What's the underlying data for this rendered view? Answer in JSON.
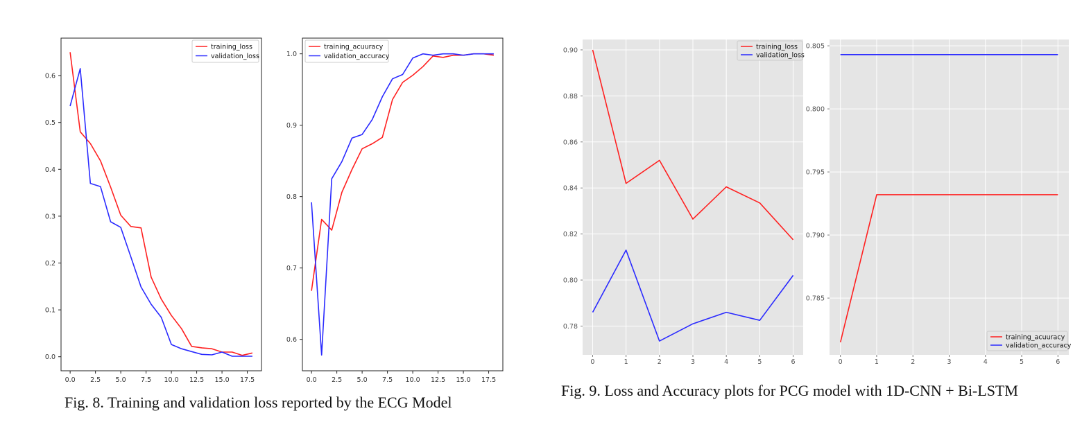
{
  "colors": {
    "training": "#ff2020",
    "validation": "#2a2aff",
    "gg_background": "#e5e5e5",
    "gg_grid": "#ffffff"
  },
  "captions": {
    "fig8": "Fig. 8. Training and validation loss reported by the ECG Model",
    "fig9": "Fig. 9. Loss and Accuracy plots for PCG model with 1D-CNN + Bi-LSTM"
  },
  "chart_data": [
    {
      "type": "line",
      "style": "classic",
      "legend": "top-right",
      "grid": false,
      "xlim": [
        -0.9,
        18.9
      ],
      "ylim": [
        -0.03,
        0.68
      ],
      "xticks": [
        0,
        2.5,
        5,
        7.5,
        10,
        12.5,
        15,
        17.5
      ],
      "xtick_labels": [
        "0.0",
        "2.5",
        "5.0",
        "7.5",
        "10.0",
        "12.5",
        "15.0",
        "17.5"
      ],
      "yticks": [
        0,
        0.1,
        0.2,
        0.3,
        0.4,
        0.5,
        0.6
      ],
      "ytick_labels": [
        "0.0",
        "0.1",
        "0.2",
        "0.3",
        "0.4",
        "0.5",
        "0.6"
      ],
      "x": [
        0,
        1,
        2,
        3,
        4,
        5,
        6,
        7,
        8,
        9,
        10,
        11,
        12,
        13,
        14,
        15,
        16,
        17,
        18
      ],
      "series": [
        {
          "name": "training_loss",
          "color": "#ff2020",
          "values": [
            0.65,
            0.48,
            0.455,
            0.418,
            0.362,
            0.302,
            0.278,
            0.275,
            0.17,
            0.123,
            0.088,
            0.06,
            0.022,
            0.019,
            0.017,
            0.01,
            0.01,
            0.003,
            0.008
          ]
        },
        {
          "name": "validation_loss",
          "color": "#2a2aff",
          "values": [
            0.535,
            0.615,
            0.37,
            0.363,
            0.288,
            0.276,
            0.213,
            0.149,
            0.112,
            0.084,
            0.026,
            0.017,
            0.011,
            0.005,
            0.004,
            0.01,
            0.001,
            0.001,
            0.001
          ]
        }
      ]
    },
    {
      "type": "line",
      "style": "classic",
      "legend": "top-left",
      "grid": false,
      "xlim": [
        -0.9,
        18.9
      ],
      "ylim": [
        0.556,
        1.022
      ],
      "xticks": [
        0,
        2.5,
        5,
        7.5,
        10,
        12.5,
        15,
        17.5
      ],
      "xtick_labels": [
        "0.0",
        "2.5",
        "5.0",
        "7.5",
        "10.0",
        "12.5",
        "15.0",
        "17.5"
      ],
      "yticks": [
        0.6,
        0.7,
        0.8,
        0.9,
        1.0
      ],
      "ytick_labels": [
        "0.6",
        "0.7",
        "0.8",
        "0.9",
        "1.0"
      ],
      "x": [
        0,
        1,
        2,
        3,
        4,
        5,
        6,
        7,
        8,
        9,
        10,
        11,
        12,
        13,
        14,
        15,
        16,
        17,
        18
      ],
      "series": [
        {
          "name": "training_acuuracy",
          "color": "#ff2020",
          "values": [
            0.668,
            0.768,
            0.753,
            0.806,
            0.838,
            0.867,
            0.874,
            0.883,
            0.936,
            0.96,
            0.97,
            0.982,
            0.997,
            0.995,
            0.998,
            0.998,
            1.0,
            1.0,
            0.998
          ]
        },
        {
          "name": "validation_accuracy",
          "color": "#2a2aff",
          "values": [
            0.792,
            0.578,
            0.825,
            0.849,
            0.882,
            0.887,
            0.908,
            0.94,
            0.965,
            0.971,
            0.994,
            1.0,
            0.998,
            1.0,
            1.0,
            0.998,
            1.0,
            1.0,
            1.0
          ]
        }
      ]
    },
    {
      "type": "line",
      "style": "ggplot",
      "legend": "top-right",
      "grid": true,
      "xlim": [
        -0.3,
        6.3
      ],
      "ylim": [
        0.7675,
        0.9045
      ],
      "xticks": [
        0,
        1,
        2,
        3,
        4,
        5,
        6
      ],
      "xtick_labels": [
        "0",
        "1",
        "2",
        "3",
        "4",
        "5",
        "6"
      ],
      "yticks": [
        0.78,
        0.8,
        0.82,
        0.84,
        0.86,
        0.88,
        0.9
      ],
      "ytick_labels": [
        "0.78",
        "0.80",
        "0.82",
        "0.84",
        "0.86",
        "0.88",
        "0.90"
      ],
      "x": [
        0,
        1,
        2,
        3,
        4,
        5,
        6
      ],
      "series": [
        {
          "name": "training_loss",
          "color": "#ff2020",
          "values": [
            0.9,
            0.842,
            0.852,
            0.8265,
            0.8405,
            0.8335,
            0.8175
          ]
        },
        {
          "name": "validation_loss",
          "color": "#2a2aff",
          "values": [
            0.786,
            0.813,
            0.7735,
            0.781,
            0.786,
            0.7825,
            0.802
          ]
        }
      ]
    },
    {
      "type": "line",
      "style": "ggplot",
      "legend": "bottom-right",
      "grid": true,
      "xlim": [
        -0.3,
        6.3
      ],
      "ylim": [
        0.7805,
        0.8055
      ],
      "xticks": [
        0,
        1,
        2,
        3,
        4,
        5,
        6
      ],
      "xtick_labels": [
        "0",
        "1",
        "2",
        "3",
        "4",
        "5",
        "6"
      ],
      "yticks": [
        0.785,
        0.79,
        0.795,
        0.8,
        0.805
      ],
      "ytick_labels": [
        "0.785",
        "0.790",
        "0.795",
        "0.800",
        "0.805"
      ],
      "x": [
        0,
        1,
        2,
        3,
        4,
        5,
        6
      ],
      "series": [
        {
          "name": "training_acuuracy",
          "color": "#ff2020",
          "values": [
            0.7815,
            0.7932,
            0.7932,
            0.7932,
            0.7932,
            0.7932,
            0.7932
          ]
        },
        {
          "name": "validation_accuracy",
          "color": "#2a2aff",
          "values": [
            0.8043,
            0.8043,
            0.8043,
            0.8043,
            0.8043,
            0.8043,
            0.8043
          ]
        }
      ]
    }
  ]
}
